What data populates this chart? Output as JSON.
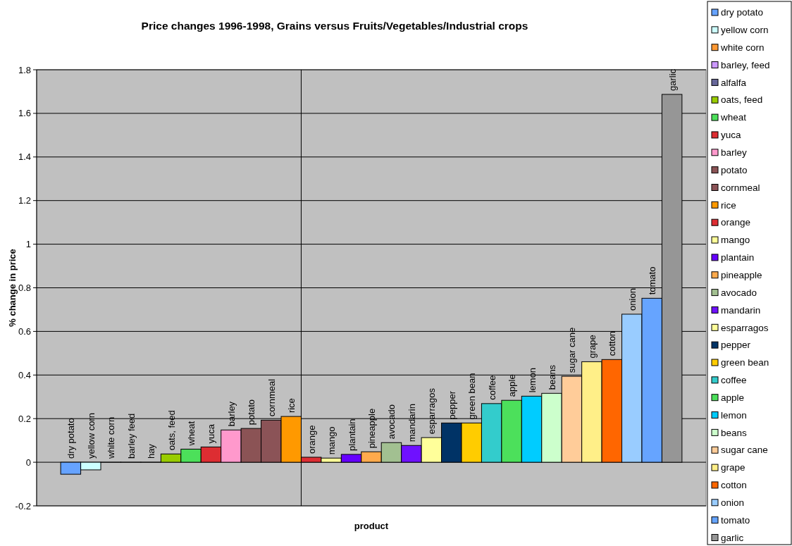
{
  "chart_data": {
    "type": "bar",
    "title": "Price changes 1996-1998, Grains versus Fruits/Vegetables/Industrial crops",
    "xlabel": "product",
    "ylabel": "% change in price",
    "categories": [
      "dry potato",
      "yellow corn",
      "white corn",
      "barley feed",
      "hay",
      "oats, feed",
      "wheat",
      "yuca",
      "barley",
      "potato",
      "cornmeal",
      "rice",
      "orange",
      "mango",
      "plantain",
      "pineapple",
      "avocado",
      "mandarin",
      "esparragos",
      "pepper",
      "green bean",
      "coffee",
      "apple",
      "lemon",
      "beans",
      "sugar cane",
      "grape",
      "cotton",
      "onion",
      "tomato",
      "garlic"
    ],
    "series": [
      {
        "name": "dry potato",
        "color": "#66a3ff",
        "values": [
          -0.055,
          null,
          null,
          null,
          null,
          null,
          null,
          null,
          null,
          null,
          null,
          null,
          null,
          null,
          null,
          null,
          null,
          null,
          null,
          null,
          null,
          null,
          null,
          null,
          null,
          null,
          null,
          null,
          null,
          null,
          null
        ]
      },
      {
        "name": "yellow corn",
        "color": "#ccffff",
        "values": [
          null,
          -0.035,
          null,
          null,
          null,
          null,
          null,
          null,
          null,
          null,
          null,
          null,
          null,
          null,
          null,
          null,
          null,
          null,
          null,
          null,
          null,
          null,
          null,
          null,
          null,
          null,
          null,
          null,
          null,
          null,
          null
        ]
      },
      {
        "name": "white corn",
        "color": "#ff9933",
        "values": [
          null,
          null,
          0,
          null,
          null,
          null,
          null,
          null,
          null,
          null,
          null,
          null,
          null,
          null,
          null,
          null,
          null,
          null,
          null,
          null,
          null,
          null,
          null,
          null,
          null,
          null,
          null,
          null,
          null,
          null,
          null
        ]
      },
      {
        "name": "barley, feed",
        "color": "#cc99ff",
        "values": [
          null,
          null,
          null,
          0,
          null,
          null,
          null,
          null,
          null,
          null,
          null,
          null,
          null,
          null,
          null,
          null,
          null,
          null,
          null,
          null,
          null,
          null,
          null,
          null,
          null,
          null,
          null,
          null,
          null,
          null,
          null
        ]
      },
      {
        "name": "alfalfa",
        "color": "#666699",
        "values": [
          null,
          null,
          null,
          null,
          0,
          null,
          null,
          null,
          null,
          null,
          null,
          null,
          null,
          null,
          null,
          null,
          null,
          null,
          null,
          null,
          null,
          null,
          null,
          null,
          null,
          null,
          null,
          null,
          null,
          null,
          null
        ]
      },
      {
        "name": "oats, feed",
        "color": "#99cc00",
        "values": [
          null,
          null,
          null,
          null,
          null,
          0.038,
          null,
          null,
          null,
          null,
          null,
          null,
          null,
          null,
          null,
          null,
          null,
          null,
          null,
          null,
          null,
          null,
          null,
          null,
          null,
          null,
          null,
          null,
          null,
          null,
          null
        ]
      },
      {
        "name": "wheat",
        "color": "#4ce05a",
        "values": [
          null,
          null,
          null,
          null,
          null,
          null,
          0.06,
          null,
          null,
          null,
          null,
          null,
          null,
          null,
          null,
          null,
          null,
          null,
          null,
          null,
          null,
          null,
          null,
          null,
          null,
          null,
          null,
          null,
          null,
          null,
          null
        ]
      },
      {
        "name": "yuca",
        "color": "#dd2d32",
        "values": [
          null,
          null,
          null,
          null,
          null,
          null,
          null,
          0.07,
          null,
          null,
          null,
          null,
          null,
          null,
          null,
          null,
          null,
          null,
          null,
          null,
          null,
          null,
          null,
          null,
          null,
          null,
          null,
          null,
          null,
          null,
          null
        ]
      },
      {
        "name": "barley",
        "color": "#ff99cc",
        "values": [
          null,
          null,
          null,
          null,
          null,
          null,
          null,
          null,
          0.148,
          null,
          null,
          null,
          null,
          null,
          null,
          null,
          null,
          null,
          null,
          null,
          null,
          null,
          null,
          null,
          null,
          null,
          null,
          null,
          null,
          null,
          null
        ]
      },
      {
        "name": "potato",
        "color": "#8b5355",
        "values": [
          null,
          null,
          null,
          null,
          null,
          null,
          null,
          null,
          null,
          0.155,
          null,
          null,
          null,
          null,
          null,
          null,
          null,
          null,
          null,
          null,
          null,
          null,
          null,
          null,
          null,
          null,
          null,
          null,
          null,
          null,
          null
        ]
      },
      {
        "name": "cornmeal",
        "color": "#8b5357",
        "values": [
          null,
          null,
          null,
          null,
          null,
          null,
          null,
          null,
          null,
          null,
          0.193,
          null,
          null,
          null,
          null,
          null,
          null,
          null,
          null,
          null,
          null,
          null,
          null,
          null,
          null,
          null,
          null,
          null,
          null,
          null,
          null
        ]
      },
      {
        "name": "rice",
        "color": "#ff9900",
        "values": [
          null,
          null,
          null,
          null,
          null,
          null,
          null,
          null,
          null,
          null,
          null,
          0.21,
          null,
          null,
          null,
          null,
          null,
          null,
          null,
          null,
          null,
          null,
          null,
          null,
          null,
          null,
          null,
          null,
          null,
          null,
          null
        ]
      },
      {
        "name": "orange",
        "color": "#dd2d33",
        "values": [
          null,
          null,
          null,
          null,
          null,
          null,
          null,
          null,
          null,
          null,
          null,
          null,
          0.023,
          null,
          null,
          null,
          null,
          null,
          null,
          null,
          null,
          null,
          null,
          null,
          null,
          null,
          null,
          null,
          null,
          null,
          null
        ]
      },
      {
        "name": "mango",
        "color": "#ffff99",
        "values": [
          null,
          null,
          null,
          null,
          null,
          null,
          null,
          null,
          null,
          null,
          null,
          null,
          null,
          0.019,
          null,
          null,
          null,
          null,
          null,
          null,
          null,
          null,
          null,
          null,
          null,
          null,
          null,
          null,
          null,
          null,
          null
        ]
      },
      {
        "name": "plantain",
        "color": "#6600ff",
        "values": [
          null,
          null,
          null,
          null,
          null,
          null,
          null,
          null,
          null,
          null,
          null,
          null,
          null,
          null,
          0.036,
          null,
          null,
          null,
          null,
          null,
          null,
          null,
          null,
          null,
          null,
          null,
          null,
          null,
          null,
          null,
          null
        ]
      },
      {
        "name": "pineapple",
        "color": "#ffaa4c",
        "values": [
          null,
          null,
          null,
          null,
          null,
          null,
          null,
          null,
          null,
          null,
          null,
          null,
          null,
          null,
          null,
          0.048,
          null,
          null,
          null,
          null,
          null,
          null,
          null,
          null,
          null,
          null,
          null,
          null,
          null,
          null,
          null
        ]
      },
      {
        "name": "avocado",
        "color": "#a2c091",
        "values": [
          null,
          null,
          null,
          null,
          null,
          null,
          null,
          null,
          null,
          null,
          null,
          null,
          null,
          null,
          null,
          null,
          0.09,
          null,
          null,
          null,
          null,
          null,
          null,
          null,
          null,
          null,
          null,
          null,
          null,
          null,
          null
        ]
      },
      {
        "name": "mandarin",
        "color": "#6f11ff",
        "values": [
          null,
          null,
          null,
          null,
          null,
          null,
          null,
          null,
          null,
          null,
          null,
          null,
          null,
          null,
          null,
          null,
          null,
          0.077,
          null,
          null,
          null,
          null,
          null,
          null,
          null,
          null,
          null,
          null,
          null,
          null,
          null
        ]
      },
      {
        "name": "esparragos",
        "color": "#ffff9a",
        "values": [
          null,
          null,
          null,
          null,
          null,
          null,
          null,
          null,
          null,
          null,
          null,
          null,
          null,
          null,
          null,
          null,
          null,
          null,
          0.113,
          null,
          null,
          null,
          null,
          null,
          null,
          null,
          null,
          null,
          null,
          null,
          null
        ]
      },
      {
        "name": "pepper",
        "color": "#003366",
        "values": [
          null,
          null,
          null,
          null,
          null,
          null,
          null,
          null,
          null,
          null,
          null,
          null,
          null,
          null,
          null,
          null,
          null,
          null,
          null,
          0.18,
          null,
          null,
          null,
          null,
          null,
          null,
          null,
          null,
          null,
          null,
          null
        ]
      },
      {
        "name": "green bean",
        "color": "#ffcc00",
        "values": [
          null,
          null,
          null,
          null,
          null,
          null,
          null,
          null,
          null,
          null,
          null,
          null,
          null,
          null,
          null,
          null,
          null,
          null,
          null,
          null,
          0.18,
          null,
          null,
          null,
          null,
          null,
          null,
          null,
          null,
          null,
          null
        ]
      },
      {
        "name": "coffee",
        "color": "#33cccc",
        "values": [
          null,
          null,
          null,
          null,
          null,
          null,
          null,
          null,
          null,
          null,
          null,
          null,
          null,
          null,
          null,
          null,
          null,
          null,
          null,
          null,
          null,
          0.269,
          null,
          null,
          null,
          null,
          null,
          null,
          null,
          null,
          null
        ]
      },
      {
        "name": "apple",
        "color": "#4ce05b",
        "values": [
          null,
          null,
          null,
          null,
          null,
          null,
          null,
          null,
          null,
          null,
          null,
          null,
          null,
          null,
          null,
          null,
          null,
          null,
          null,
          null,
          null,
          null,
          0.284,
          null,
          null,
          null,
          null,
          null,
          null,
          null,
          null
        ]
      },
      {
        "name": "lemon",
        "color": "#00ccff",
        "values": [
          null,
          null,
          null,
          null,
          null,
          null,
          null,
          null,
          null,
          null,
          null,
          null,
          null,
          null,
          null,
          null,
          null,
          null,
          null,
          null,
          null,
          null,
          null,
          0.303,
          null,
          null,
          null,
          null,
          null,
          null,
          null
        ]
      },
      {
        "name": "beans",
        "color": "#ccffcc",
        "values": [
          null,
          null,
          null,
          null,
          null,
          null,
          null,
          null,
          null,
          null,
          null,
          null,
          null,
          null,
          null,
          null,
          null,
          null,
          null,
          null,
          null,
          null,
          null,
          null,
          0.316,
          null,
          null,
          null,
          null,
          null,
          null
        ]
      },
      {
        "name": "sugar cane",
        "color": "#ffcc99",
        "values": [
          null,
          null,
          null,
          null,
          null,
          null,
          null,
          null,
          null,
          null,
          null,
          null,
          null,
          null,
          null,
          null,
          null,
          null,
          null,
          null,
          null,
          null,
          null,
          null,
          null,
          0.394,
          null,
          null,
          null,
          null,
          null
        ]
      },
      {
        "name": "grape",
        "color": "#ffef88",
        "values": [
          null,
          null,
          null,
          null,
          null,
          null,
          null,
          null,
          null,
          null,
          null,
          null,
          null,
          null,
          null,
          null,
          null,
          null,
          null,
          null,
          null,
          null,
          null,
          null,
          null,
          null,
          0.461,
          null,
          null,
          null,
          null
        ]
      },
      {
        "name": "cotton",
        "color": "#ff6600",
        "values": [
          null,
          null,
          null,
          null,
          null,
          null,
          null,
          null,
          null,
          null,
          null,
          null,
          null,
          null,
          null,
          null,
          null,
          null,
          null,
          null,
          null,
          null,
          null,
          null,
          null,
          null,
          null,
          0.471,
          null,
          null,
          null
        ]
      },
      {
        "name": "onion",
        "color": "#99ccff",
        "values": [
          null,
          null,
          null,
          null,
          null,
          null,
          null,
          null,
          null,
          null,
          null,
          null,
          null,
          null,
          null,
          null,
          null,
          null,
          null,
          null,
          null,
          null,
          null,
          null,
          null,
          null,
          null,
          null,
          0.679,
          null,
          null
        ]
      },
      {
        "name": "tomato",
        "color": "#66a4ff",
        "values": [
          null,
          null,
          null,
          null,
          null,
          null,
          null,
          null,
          null,
          null,
          null,
          null,
          null,
          null,
          null,
          null,
          null,
          null,
          null,
          null,
          null,
          null,
          null,
          null,
          null,
          null,
          null,
          null,
          null,
          0.752,
          null
        ]
      },
      {
        "name": "garlic",
        "color": "#969696",
        "values": [
          null,
          null,
          null,
          null,
          null,
          null,
          null,
          null,
          null,
          null,
          null,
          null,
          null,
          null,
          null,
          null,
          null,
          null,
          null,
          null,
          null,
          null,
          null,
          null,
          null,
          null,
          null,
          null,
          null,
          null,
          1.687
        ]
      }
    ],
    "ylim": [
      -0.2,
      1.8
    ],
    "yticks": [
      -0.2,
      0,
      0.2,
      0.4,
      0.6,
      0.8,
      1,
      1.2,
      1.4,
      1.6,
      1.8
    ],
    "grid": "y",
    "legend": "right"
  }
}
